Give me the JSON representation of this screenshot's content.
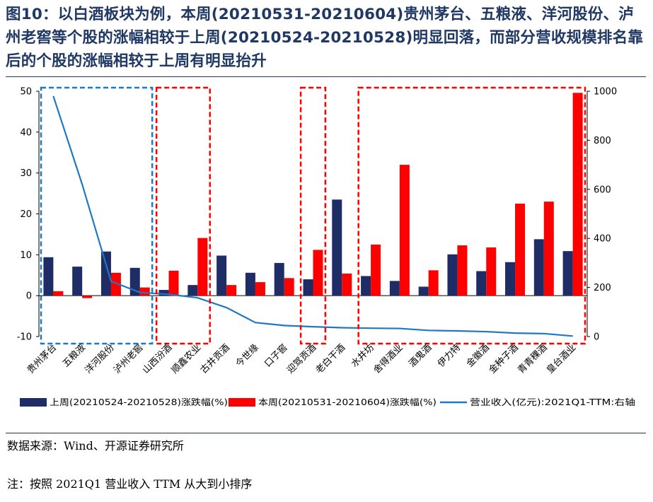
{
  "title": "图10：以白酒板块为例，本周(20210531-20210604)贵州茅台、五粮液、洋河股份、泸州老窖等个股的涨幅相较于上周(20210524-20210528)明显回落，而部分营收规模排名靠后的个股的涨幅相较于上周有明显抬升",
  "source": "数据来源：Wind、开源证券研究所",
  "note": "注：按照 2021Q1 营业收入 TTM 从大到小排序",
  "colors": {
    "last_week": "#1f2d66",
    "this_week": "#ff0000",
    "revenue": "#1f78c1",
    "title": "#1f3864"
  },
  "chart_data": {
    "type": "bar",
    "categories": [
      "贵州茅台",
      "五粮液",
      "洋河股份",
      "泸州老窖",
      "山西汾酒",
      "顺鑫农业",
      "古井贡酒",
      "今世缘",
      "口子窖",
      "迎驾贡酒",
      "老白干酒",
      "水井坊",
      "舍得酒业",
      "酒鬼酒",
      "伊力特",
      "金徽酒",
      "金种子酒",
      "青青稞酒",
      "皇台酒业"
    ],
    "series": [
      {
        "name": "上周(20210524-20210528)涨跌幅(%)",
        "type": "bar",
        "axis": "left",
        "color": "#1f2d66",
        "values": [
          9.4,
          7.1,
          10.8,
          6.8,
          1.4,
          2.6,
          9.8,
          5.6,
          8.0,
          4.0,
          23.5,
          4.8,
          3.6,
          2.2,
          10.1,
          6.0,
          8.2,
          13.8,
          10.9
        ]
      },
      {
        "name": "本周(20210531-20210604)涨跌幅(%)",
        "type": "bar",
        "axis": "left",
        "color": "#ff0000",
        "values": [
          1.1,
          -0.6,
          5.6,
          2.0,
          6.1,
          14.1,
          2.6,
          3.3,
          4.3,
          11.2,
          5.4,
          12.5,
          32.0,
          6.2,
          12.3,
          11.8,
          22.5,
          23.0,
          49.6
        ]
      },
      {
        "name": "营业收入(亿元):2021Q1-TTM:右轴",
        "type": "line",
        "axis": "right",
        "color": "#1f78c1",
        "values": [
          980,
          620,
          225,
          180,
          172,
          158,
          118,
          57,
          45,
          40,
          36,
          34,
          33,
          25,
          23,
          20,
          14,
          12,
          2
        ]
      }
    ],
    "y_left": {
      "min": -10,
      "max": 50,
      "ticks": [
        -10,
        0,
        10,
        20,
        30,
        40,
        50
      ]
    },
    "y_right": {
      "min": 0,
      "max": 1000,
      "ticks": [
        0,
        200,
        400,
        600,
        800,
        1000
      ]
    },
    "legend_position": "bottom",
    "grid": false,
    "highlight_groups": [
      {
        "color": "blue",
        "categories": [
          "贵州茅台",
          "五粮液",
          "洋河股份",
          "泸州老窖"
        ]
      },
      {
        "color": "red",
        "categories": [
          "山西汾酒",
          "顺鑫农业"
        ]
      },
      {
        "color": "red",
        "categories": [
          "迎驾贡酒"
        ]
      },
      {
        "color": "red",
        "categories": [
          "水井坊",
          "舍得酒业",
          "酒鬼酒",
          "伊力特",
          "金徽酒",
          "金种子酒",
          "青青稞酒",
          "皇台酒业"
        ]
      }
    ]
  }
}
